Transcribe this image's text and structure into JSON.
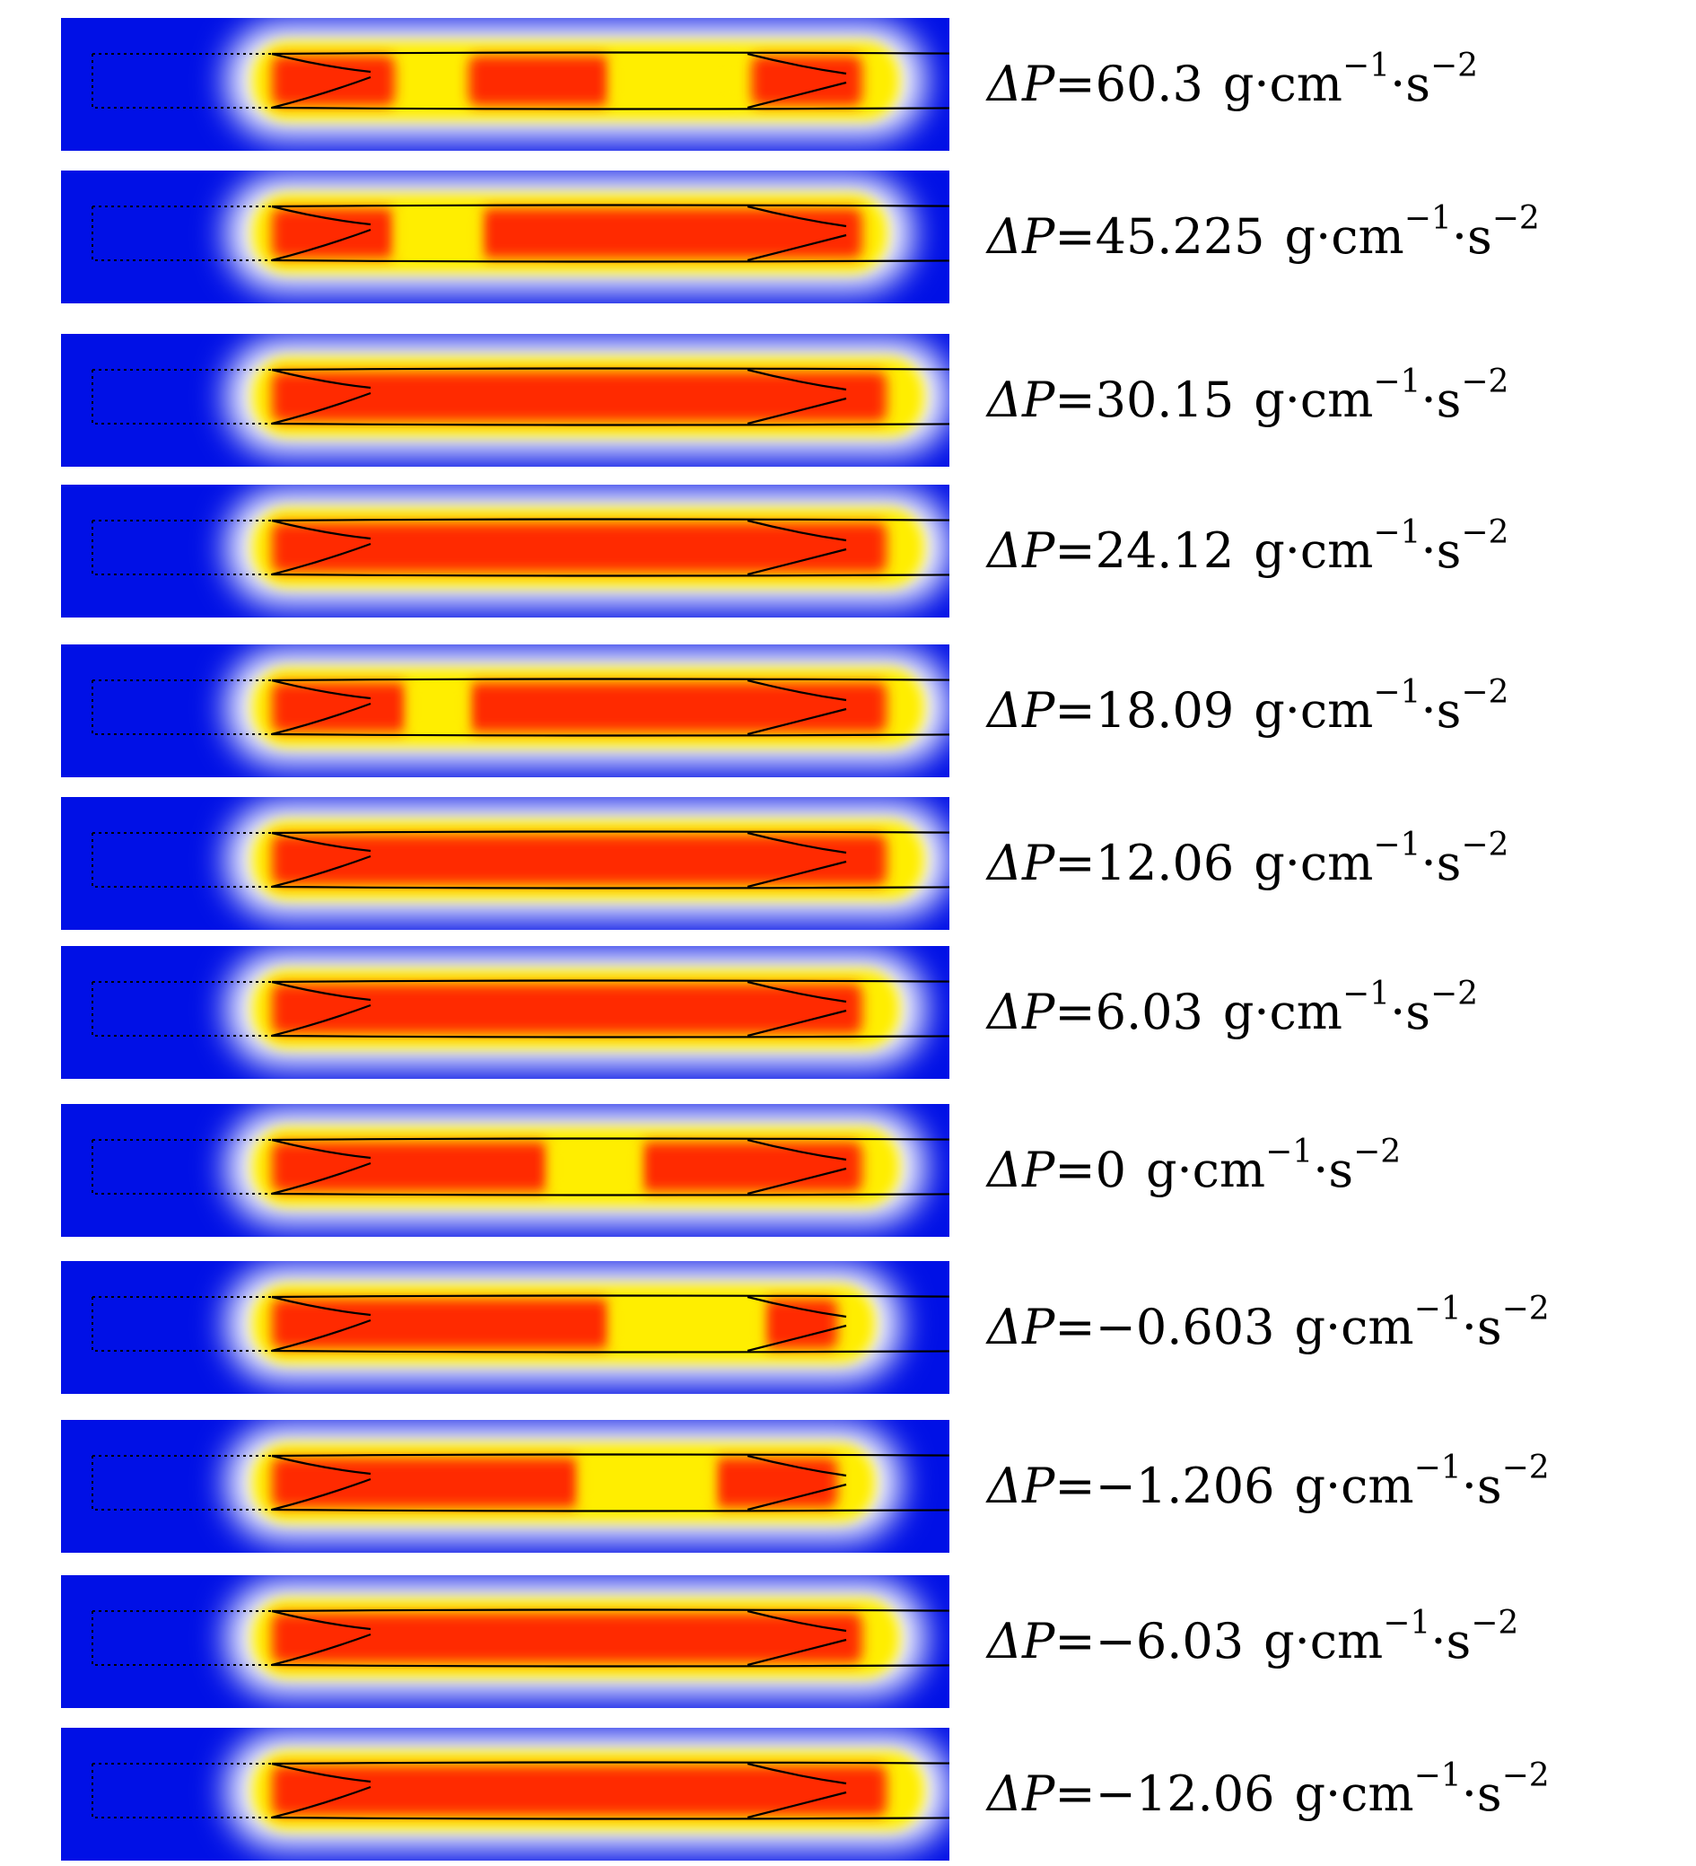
{
  "colors": {
    "background": "#0010e6",
    "core": "#ff2a00",
    "mid": "#ff7a00",
    "glow": "#ffee00",
    "edge": "#ffffff",
    "line": "#000000"
  },
  "labels": {
    "symbol": "ΔP",
    "equals": "=",
    "unit_base": "g·cm",
    "unit_exp1": "−1",
    "unit_mid": "·s",
    "unit_exp2": "−2"
  },
  "panels": [
    {
      "value": "60.3",
      "hot_segments": [
        [
          0.0,
          0.2
        ],
        [
          0.32,
          0.55
        ],
        [
          0.78,
          0.96
        ]
      ],
      "cool_gap": [
        [
          0.55,
          0.75
        ]
      ],
      "right_fill": 0.96
    },
    {
      "value": "45.225",
      "hot_segments": [
        [
          0.0,
          0.2
        ],
        [
          0.34,
          0.96
        ]
      ],
      "cool_gap": [
        [
          0.2,
          0.34
        ]
      ],
      "right_fill": 0.94
    },
    {
      "value": "30.15",
      "hot_segments": [
        [
          0.0,
          1.0
        ]
      ],
      "cool_gap": [],
      "right_fill": 1.0
    },
    {
      "value": "24.12",
      "hot_segments": [
        [
          0.0,
          1.0
        ]
      ],
      "cool_gap": [],
      "right_fill": 1.0
    },
    {
      "value": "18.09",
      "hot_segments": [
        [
          0.0,
          0.22
        ],
        [
          0.32,
          1.0
        ]
      ],
      "cool_gap": [
        [
          0.22,
          0.32
        ]
      ],
      "right_fill": 1.0
    },
    {
      "value": "12.06",
      "hot_segments": [
        [
          0.0,
          1.0
        ]
      ],
      "cool_gap": [],
      "right_fill": 1.0
    },
    {
      "value": "6.03",
      "hot_segments": [
        [
          0.0,
          0.96
        ]
      ],
      "cool_gap": [],
      "right_fill": 0.96
    },
    {
      "value": "0",
      "hot_segments": [
        [
          0.0,
          0.45
        ],
        [
          0.6,
          0.96
        ]
      ],
      "cool_gap": [
        [
          0.45,
          0.6
        ]
      ],
      "right_fill": 0.96
    },
    {
      "value": "−0.603",
      "hot_segments": [
        [
          0.0,
          0.55
        ],
        [
          0.8,
          0.92
        ]
      ],
      "cool_gap": [
        [
          0.55,
          0.8
        ]
      ],
      "right_fill": 0.92
    },
    {
      "value": "−1.206",
      "hot_segments": [
        [
          0.0,
          0.5
        ],
        [
          0.72,
          0.92
        ]
      ],
      "cool_gap": [
        [
          0.5,
          0.72
        ]
      ],
      "right_fill": 0.92
    },
    {
      "value": "−6.03",
      "hot_segments": [
        [
          0.0,
          0.96
        ]
      ],
      "cool_gap": [],
      "right_fill": 0.96
    },
    {
      "value": "−12.06",
      "hot_segments": [
        [
          0.0,
          1.0
        ]
      ],
      "cool_gap": [],
      "right_fill": 1.0
    }
  ]
}
